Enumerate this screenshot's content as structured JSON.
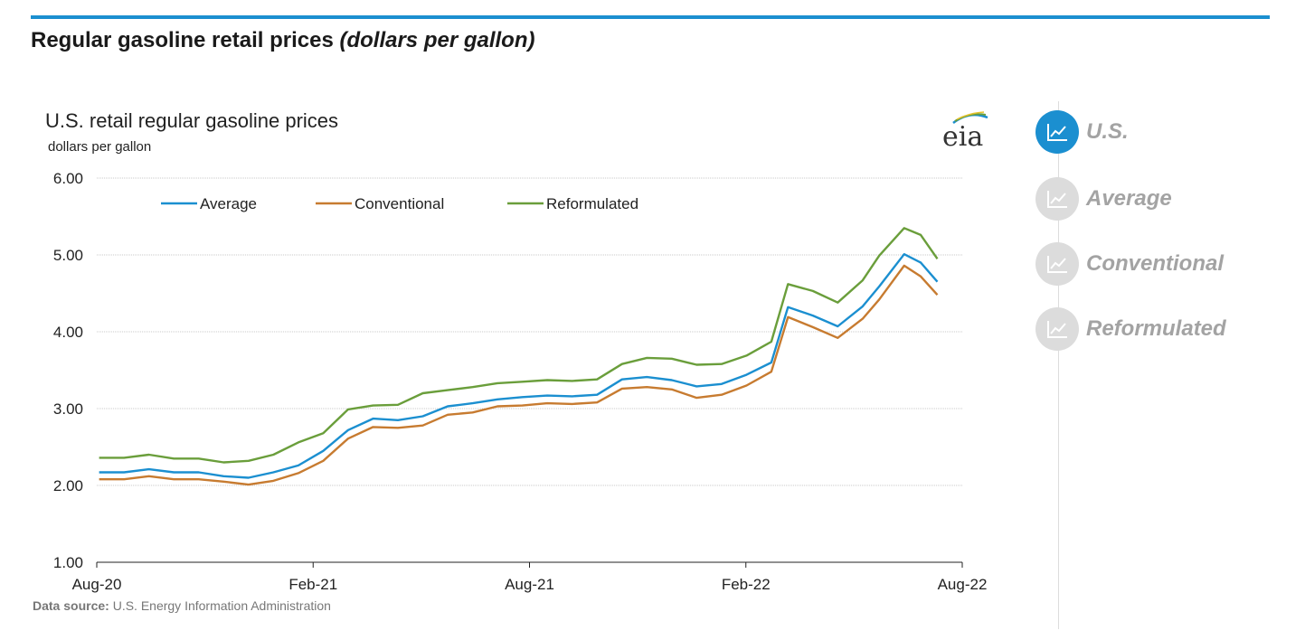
{
  "header": {
    "title": "Regular gasoline retail prices",
    "title_unit": "(dollars per gallon)"
  },
  "chart_data": {
    "type": "line",
    "title": "U.S. retail regular gasoline prices",
    "subtitle": "dollars per gallon",
    "ylim": [
      1,
      6
    ],
    "y_ticks": [
      1,
      2,
      3,
      4,
      5,
      6
    ],
    "y_tick_labels": [
      "1.00",
      "2.00",
      "3.00",
      "4.00",
      "5.00",
      "6.00"
    ],
    "x_tick_labels": [
      "Aug-20",
      "Feb-21",
      "Aug-21",
      "Feb-22",
      "Aug-22"
    ],
    "x_range": [
      "2020-08-01",
      "2022-08-01"
    ],
    "grid": true,
    "legend_position": "top-left",
    "x": [
      "2020-08-03",
      "2020-08-24",
      "2020-09-14",
      "2020-10-05",
      "2020-10-26",
      "2020-11-16",
      "2020-12-07",
      "2020-12-28",
      "2021-01-18",
      "2021-02-08",
      "2021-03-01",
      "2021-03-22",
      "2021-04-12",
      "2021-05-03",
      "2021-05-24",
      "2021-06-14",
      "2021-07-05",
      "2021-07-26",
      "2021-08-16",
      "2021-09-06",
      "2021-09-27",
      "2021-10-18",
      "2021-11-08",
      "2021-11-29",
      "2021-12-20",
      "2022-01-10",
      "2022-01-31",
      "2022-02-21",
      "2022-03-07",
      "2022-03-28",
      "2022-04-18",
      "2022-05-09",
      "2022-05-23",
      "2022-06-13",
      "2022-06-27",
      "2022-07-11"
    ],
    "series": [
      {
        "name": "Average",
        "color": "#1b8fd0",
        "values": [
          2.17,
          2.17,
          2.21,
          2.17,
          2.17,
          2.12,
          2.1,
          2.17,
          2.26,
          2.45,
          2.72,
          2.87,
          2.85,
          2.9,
          3.03,
          3.07,
          3.12,
          3.15,
          3.17,
          3.16,
          3.18,
          3.38,
          3.41,
          3.37,
          3.29,
          3.32,
          3.44,
          3.6,
          4.32,
          4.21,
          4.07,
          4.33,
          4.59,
          5.01,
          4.9,
          4.65
        ]
      },
      {
        "name": "Conventional",
        "color": "#c77b30",
        "values": [
          2.08,
          2.08,
          2.12,
          2.08,
          2.08,
          2.05,
          2.01,
          2.06,
          2.16,
          2.32,
          2.61,
          2.76,
          2.75,
          2.78,
          2.92,
          2.95,
          3.03,
          3.04,
          3.07,
          3.06,
          3.08,
          3.26,
          3.28,
          3.25,
          3.14,
          3.18,
          3.3,
          3.48,
          4.19,
          4.06,
          3.92,
          4.17,
          4.42,
          4.86,
          4.72,
          4.48
        ]
      },
      {
        "name": "Reformulated",
        "color": "#6a9e3b",
        "values": [
          2.36,
          2.36,
          2.4,
          2.35,
          2.35,
          2.3,
          2.32,
          2.4,
          2.56,
          2.68,
          2.99,
          3.04,
          3.05,
          3.2,
          3.24,
          3.28,
          3.33,
          3.35,
          3.37,
          3.36,
          3.38,
          3.58,
          3.66,
          3.65,
          3.57,
          3.58,
          3.69,
          3.87,
          4.62,
          4.53,
          4.38,
          4.67,
          4.99,
          5.35,
          5.26,
          4.95
        ]
      }
    ]
  },
  "logo_text": "eia",
  "footer": {
    "source_label": "Data source:",
    "source_text": "U.S. Energy Information Administration"
  },
  "sidebar": {
    "items": [
      {
        "label": "U.S.",
        "icon": "line-chart-icon",
        "active": true
      },
      {
        "label": "Average",
        "icon": "line-chart-icon",
        "active": false
      },
      {
        "label": "Conventional",
        "icon": "line-chart-icon",
        "active": false
      },
      {
        "label": "Reformulated",
        "icon": "line-chart-icon",
        "active": false
      }
    ]
  }
}
